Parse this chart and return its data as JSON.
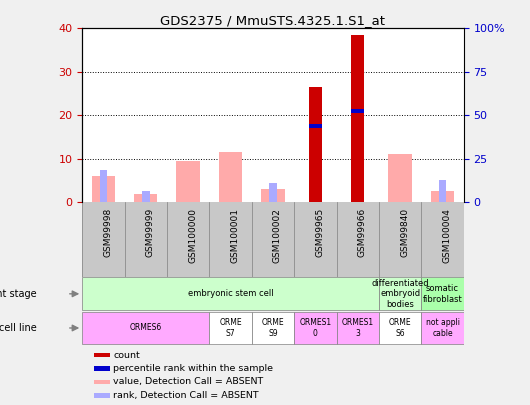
{
  "title": "GDS2375 / MmuSTS.4325.1.S1_at",
  "samples": [
    "GSM99998",
    "GSM99999",
    "GSM100000",
    "GSM100001",
    "GSM100002",
    "GSM99965",
    "GSM99966",
    "GSM99840",
    "GSM100004"
  ],
  "count_values": [
    0,
    0,
    0,
    0,
    0,
    26.5,
    38.5,
    0,
    0
  ],
  "percentile_values": [
    0,
    0,
    0,
    0,
    0,
    17.5,
    21.0,
    0,
    0
  ],
  "absent_value": [
    6,
    2,
    9.5,
    11.5,
    3,
    0,
    0,
    11,
    2.5
  ],
  "absent_rank": [
    7.5,
    2.5,
    0,
    0,
    4.5,
    0,
    0,
    0,
    5.0
  ],
  "ylim_left": [
    0,
    40
  ],
  "ylim_right": [
    0,
    100
  ],
  "yticks_left": [
    0,
    10,
    20,
    30,
    40
  ],
  "yticks_right": [
    0,
    25,
    50,
    75,
    100
  ],
  "ytick_labels_left": [
    "0",
    "10",
    "20",
    "30",
    "40"
  ],
  "ytick_labels_right": [
    "0",
    "25",
    "50",
    "75",
    "100%"
  ],
  "color_count": "#cc0000",
  "color_percentile": "#0000cc",
  "color_absent_value": "#ffaaaa",
  "color_absent_rank": "#aaaaff",
  "bg_color": "#f0f0f0",
  "plot_bg": "#ffffff",
  "grid_color": "#000000",
  "tick_label_color_left": "#cc0000",
  "tick_label_color_right": "#0000cc",
  "xticklabel_bg": "#c8c8c8",
  "dev_stage_row": [
    {
      "label": "embryonic stem cell",
      "start": 0,
      "end": 7,
      "color": "#ccffcc"
    },
    {
      "label": "differentiated\nembryoid\nbodies",
      "start": 7,
      "end": 8,
      "color": "#ccffcc"
    },
    {
      "label": "somatic\nfibroblast",
      "start": 8,
      "end": 9,
      "color": "#aaffaa"
    }
  ],
  "cell_line_row": [
    {
      "label": "ORMES6",
      "start": 0,
      "end": 3,
      "color": "#ffaaff"
    },
    {
      "label": "ORME\nS7",
      "start": 3,
      "end": 4,
      "color": "#ffffff"
    },
    {
      "label": "ORME\nS9",
      "start": 4,
      "end": 5,
      "color": "#ffffff"
    },
    {
      "label": "ORMES1\n0",
      "start": 5,
      "end": 6,
      "color": "#ffaaff"
    },
    {
      "label": "ORMES1\n3",
      "start": 6,
      "end": 7,
      "color": "#ffaaff"
    },
    {
      "label": "ORME\nS6",
      "start": 7,
      "end": 8,
      "color": "#ffffff"
    },
    {
      "label": "not appli\ncable",
      "start": 8,
      "end": 9,
      "color": "#ffaaff"
    }
  ],
  "legend_items": [
    {
      "color": "#cc0000",
      "label": "count"
    },
    {
      "color": "#0000cc",
      "label": "percentile rank within the sample"
    },
    {
      "color": "#ffaaaa",
      "label": "value, Detection Call = ABSENT"
    },
    {
      "color": "#aaaaff",
      "label": "rank, Detection Call = ABSENT"
    }
  ]
}
